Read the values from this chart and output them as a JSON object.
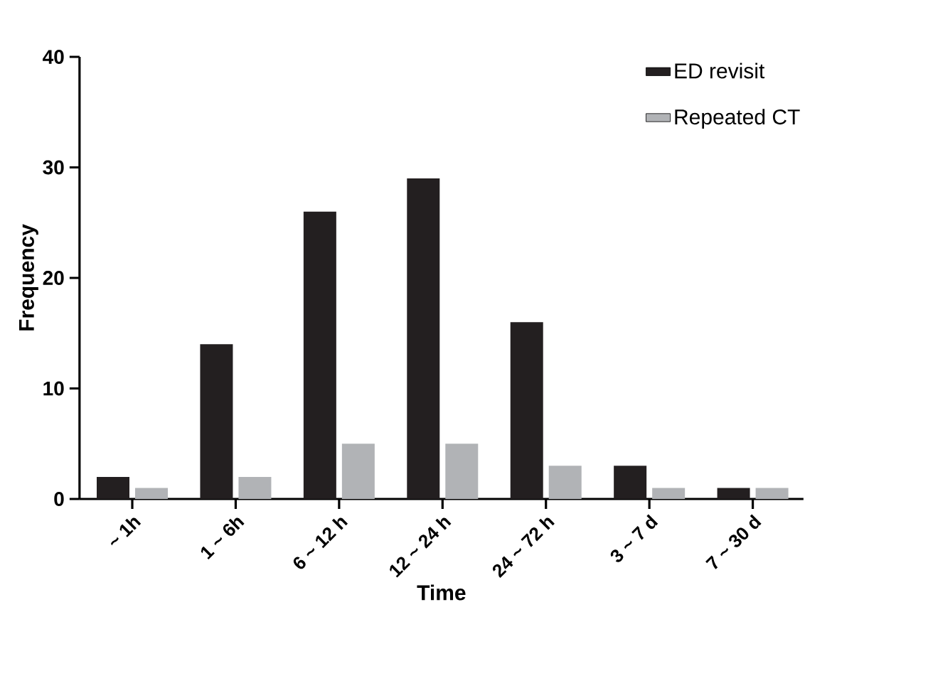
{
  "chart_data": {
    "type": "bar",
    "xlabel": "Time",
    "ylabel": "Frequency",
    "categories": [
      "~ 1h",
      "1 ~ 6h",
      "6 ~ 12 h",
      "12 ~ 24 h",
      "24 ~ 72 h",
      "3 ~ 7 d",
      "7 ~ 30 d"
    ],
    "series": [
      {
        "name": "ED revisit",
        "color": "#231f20",
        "values": [
          2,
          14,
          26,
          29,
          16,
          3,
          1
        ]
      },
      {
        "name": "Repeated CT",
        "color": "#b1b3b6",
        "values": [
          1,
          2,
          5,
          5,
          3,
          1,
          1
        ]
      }
    ],
    "ylim": [
      0,
      40
    ],
    "yticks": [
      0,
      10,
      20,
      30,
      40
    ],
    "grid": false,
    "legend": "top right"
  }
}
